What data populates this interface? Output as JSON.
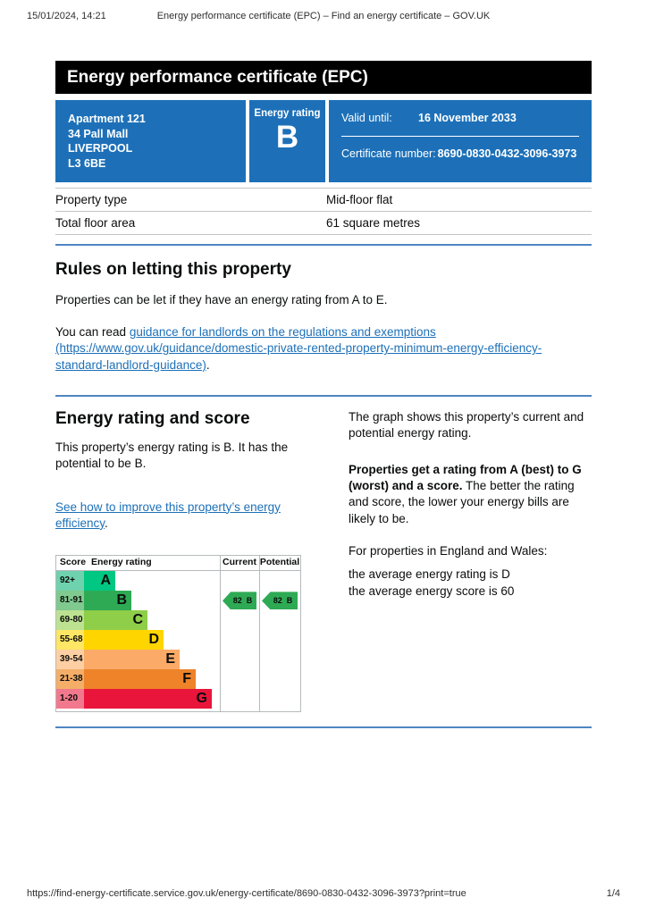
{
  "print_header": {
    "datetime": "15/01/2024, 14:21",
    "title": "Energy performance certificate (EPC) – Find an energy certificate – GOV.UK"
  },
  "banner": {
    "title": "Energy performance certificate (EPC)"
  },
  "summary_box": {
    "background_color": "#1d70b8",
    "address_lines": [
      "Apartment 121",
      "34 Pall Mall",
      "LIVERPOOL",
      "L3 6BE"
    ],
    "rating_label": "Energy rating",
    "rating_value": "B",
    "valid_until_label": "Valid until:",
    "valid_until_value": "16 November 2033",
    "certificate_number_label": "Certificate number:",
    "certificate_number_value": "8690-0830-0432-3096-3973"
  },
  "property_facts": {
    "rows": [
      {
        "label": "Property type",
        "value": "Mid-floor flat"
      },
      {
        "label": "Total floor area",
        "value": "61 square metres"
      }
    ]
  },
  "rules_section": {
    "heading": "Rules on letting this property",
    "paragraph1": "Properties can be let if they have an energy rating from A to E.",
    "paragraph2_prefix": "You can read ",
    "paragraph2_link": "guidance for landlords on the regulations and exemptions (https://www.gov.uk/guidance/domestic-private-rented-property-minimum-energy-efficiency-standard-landlord-guidance)",
    "paragraph2_suffix": "."
  },
  "rating_section": {
    "heading": "Energy rating and score",
    "paragraph1": "This property’s energy rating is B. It has the potential to be B.",
    "link_text": "See how to improve this property’s energy efficiency",
    "link_suffix": ".",
    "right_paragraph1": "The graph shows this property’s current and potential energy rating.",
    "right_paragraph2_bold": "Properties get a rating from A (best) to G (worst) and a score.",
    "right_paragraph2_rest": " The better the rating and score, the lower your energy bills are likely to be.",
    "right_paragraph3": "For properties in England and Wales:",
    "right_line1": "the average energy rating is D",
    "right_line2": "the average energy score is 60"
  },
  "chart_data": {
    "type": "epc-rating-bands",
    "headers": {
      "score": "Score",
      "rating": "Energy rating",
      "current": "Current",
      "potential": "Potential"
    },
    "bands": [
      {
        "score": "92+",
        "letter": "A",
        "color": "#00c781",
        "tint": "#6fd2ae"
      },
      {
        "score": "81-91",
        "letter": "B",
        "color": "#2eaa55",
        "tint": "#80c98f"
      },
      {
        "score": "69-80",
        "letter": "C",
        "color": "#8ece49",
        "tint": "#bce291"
      },
      {
        "score": "55-68",
        "letter": "D",
        "color": "#ffd500",
        "tint": "#ffe664"
      },
      {
        "score": "39-54",
        "letter": "E",
        "color": "#fbaa68",
        "tint": "#fdcfa2"
      },
      {
        "score": "21-38",
        "letter": "F",
        "color": "#ee8329",
        "tint": "#f4ae67"
      },
      {
        "score": "1-20",
        "letter": "G",
        "color": "#e9153b",
        "tint": "#f2798d"
      }
    ],
    "current": {
      "score": 82,
      "letter": "B"
    },
    "potential": {
      "score": 82,
      "letter": "B"
    },
    "arrow_color": "#2eaa55",
    "border_color": "#b7babc"
  },
  "page_footer": {
    "url": "https://find-energy-certificate.service.gov.uk/energy-certificate/8690-0830-0432-3096-3973?print=true",
    "page": "1/4"
  },
  "colors": {
    "accent_blue": "#1d70b8",
    "divider_blue": "#4e86c2",
    "link": "#1d70b8"
  }
}
